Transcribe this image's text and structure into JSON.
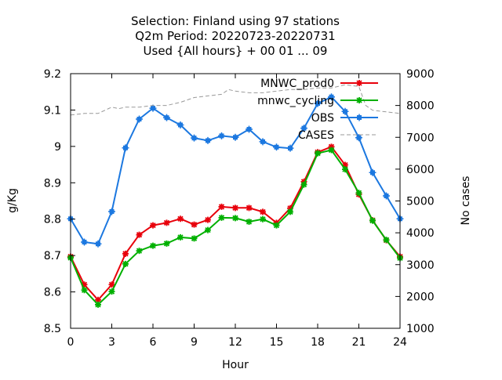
{
  "chart_data": {
    "type": "line",
    "title_lines": [
      "Selection: Finland using    97 stations",
      "Q2m   Period: 20220723-20220731",
      "Used {All hours} + 00 01 ... 09"
    ],
    "xlabel": "Hour",
    "ylabel": "g/Kg",
    "y2label": "No cases",
    "xlim": [
      0,
      24
    ],
    "ylim": [
      8.5,
      9.2
    ],
    "y2lim": [
      1000,
      9000
    ],
    "x_ticks": [
      0,
      3,
      6,
      9,
      12,
      15,
      18,
      21,
      24
    ],
    "y_ticks": [
      "8.5",
      "8.6",
      "8.7",
      "8.8",
      "8.9",
      "9",
      "9.1",
      "9.2"
    ],
    "y2_ticks": [
      "1000",
      "2000",
      "3000",
      "4000",
      "5000",
      "6000",
      "7000",
      "8000",
      "9000"
    ],
    "grid": false,
    "legend_position": "top-right",
    "x": [
      0,
      1,
      2,
      3,
      4,
      5,
      6,
      7,
      8,
      9,
      10,
      11,
      12,
      13,
      14,
      15,
      16,
      17,
      18,
      19,
      20,
      21,
      22,
      23,
      24
    ],
    "series": [
      {
        "name": "MNWC_prod0",
        "color": "#e8000b",
        "marker": "star",
        "axis": "y",
        "values": [
          8.697,
          8.62,
          8.578,
          8.62,
          8.705,
          8.757,
          8.783,
          8.79,
          8.801,
          8.785,
          8.798,
          8.834,
          8.831,
          8.831,
          8.82,
          8.79,
          8.83,
          8.903,
          8.984,
          8.999,
          8.949,
          8.868,
          8.797,
          8.742,
          8.697
        ]
      },
      {
        "name": "mnwc_cycling",
        "color": "#00b000",
        "marker": "star",
        "axis": "y",
        "values": [
          8.694,
          8.605,
          8.565,
          8.601,
          8.677,
          8.713,
          8.727,
          8.733,
          8.75,
          8.747,
          8.77,
          8.804,
          8.803,
          8.793,
          8.8,
          8.783,
          8.82,
          8.895,
          8.981,
          8.99,
          8.937,
          8.872,
          8.796,
          8.743,
          8.693
        ]
      },
      {
        "name": "OBS",
        "color": "#1c78e0",
        "marker": "square",
        "axis": "y",
        "values": [
          8.801,
          8.737,
          8.732,
          8.821,
          8.996,
          9.075,
          9.105,
          9.079,
          9.059,
          9.023,
          9.016,
          9.029,
          9.025,
          9.047,
          9.013,
          8.998,
          8.995,
          9.05,
          9.118,
          9.136,
          9.096,
          9.024,
          8.928,
          8.864,
          8.801
        ]
      },
      {
        "name": "CASES",
        "color": "#999999",
        "dashed": true,
        "axis": "y2",
        "x": [
          0,
          1,
          2,
          3,
          3.5,
          4,
          5,
          6,
          7,
          8,
          9,
          10,
          11,
          11.5,
          12,
          13,
          14,
          15,
          16,
          17,
          18,
          19,
          20,
          21,
          21.5,
          22,
          23,
          24
        ],
        "values": [
          7700,
          7750,
          7750,
          7950,
          7900,
          7950,
          7950,
          8000,
          8000,
          8100,
          8250,
          8300,
          8350,
          8500,
          8450,
          8400,
          8400,
          8450,
          8500,
          8500,
          8550,
          8550,
          8650,
          8600,
          8000,
          7850,
          7800,
          7750
        ]
      }
    ]
  }
}
